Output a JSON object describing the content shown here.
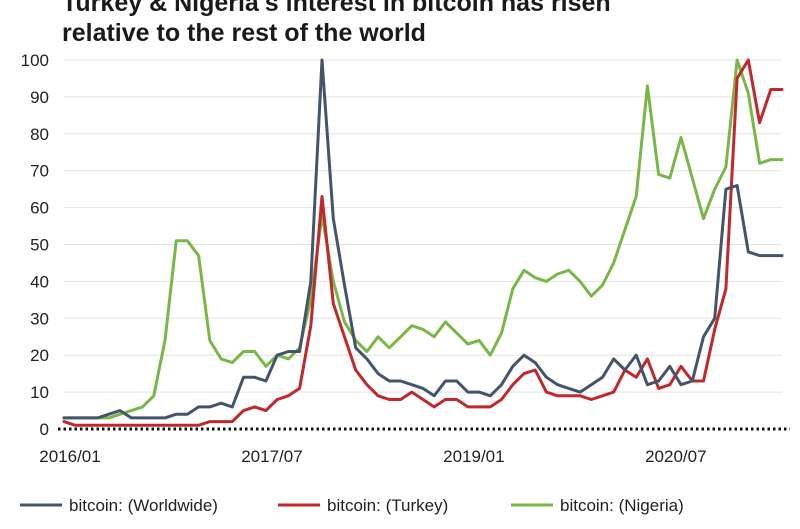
{
  "title_lines": [
    "Turkey & Nigeria's interest in bitcoin has risen",
    "relative to the rest of the world"
  ],
  "chart_data": {
    "type": "line",
    "title": "Turkey & Nigeria's interest in bitcoin has risen relative to the rest of the world",
    "xlabel": "",
    "ylabel": "",
    "ylim": [
      0,
      100
    ],
    "yticks": [
      0,
      10,
      20,
      30,
      40,
      50,
      60,
      70,
      80,
      90,
      100
    ],
    "xtick_labels": [
      "2016/01",
      "2017/07",
      "2019/01",
      "2020/07"
    ],
    "xtick_indices": [
      0,
      18,
      36,
      54
    ],
    "x": [
      "2016/01",
      "2016/02",
      "2016/03",
      "2016/04",
      "2016/05",
      "2016/06",
      "2016/07",
      "2016/08",
      "2016/09",
      "2016/10",
      "2016/11",
      "2016/12",
      "2017/01",
      "2017/02",
      "2017/03",
      "2017/04",
      "2017/05",
      "2017/06",
      "2017/07",
      "2017/08",
      "2017/09",
      "2017/10",
      "2017/11",
      "2017/12",
      "2018/01",
      "2018/02",
      "2018/03",
      "2018/04",
      "2018/05",
      "2018/06",
      "2018/07",
      "2018/08",
      "2018/09",
      "2018/10",
      "2018/11",
      "2018/12",
      "2019/01",
      "2019/02",
      "2019/03",
      "2019/04",
      "2019/05",
      "2019/06",
      "2019/07",
      "2019/08",
      "2019/09",
      "2019/10",
      "2019/11",
      "2019/12",
      "2020/01",
      "2020/02",
      "2020/03",
      "2020/04",
      "2020/05",
      "2020/06",
      "2020/07",
      "2020/08",
      "2020/09",
      "2020/10",
      "2020/11",
      "2020/12",
      "2021/01",
      "2021/02",
      "2021/03",
      "2021/04",
      "2021/05"
    ],
    "grid": true,
    "legend_position": "bottom",
    "series": [
      {
        "name": "bitcoin: (Worldwide)",
        "color": "#44546a",
        "values": [
          3,
          3,
          3,
          3,
          4,
          5,
          3,
          3,
          3,
          3,
          4,
          4,
          6,
          6,
          7,
          6,
          14,
          14,
          13,
          20,
          21,
          21,
          40,
          100,
          57,
          39,
          22,
          19,
          15,
          13,
          13,
          12,
          11,
          9,
          13,
          13,
          10,
          10,
          9,
          12,
          17,
          20,
          18,
          14,
          12,
          11,
          10,
          12,
          14,
          19,
          16,
          20,
          12,
          13,
          17,
          12,
          13,
          25,
          30,
          65,
          66,
          48,
          47,
          47,
          47
        ]
      },
      {
        "name": "bitcoin: (Turkey)",
        "color": "#c0282d",
        "values": [
          2,
          1,
          1,
          1,
          1,
          1,
          1,
          1,
          1,
          1,
          1,
          1,
          1,
          2,
          2,
          2,
          5,
          6,
          5,
          8,
          9,
          11,
          28,
          63,
          34,
          25,
          16,
          12,
          9,
          8,
          8,
          10,
          8,
          6,
          8,
          8,
          6,
          6,
          6,
          8,
          12,
          15,
          16,
          10,
          9,
          9,
          9,
          8,
          9,
          10,
          16,
          14,
          19,
          11,
          12,
          17,
          13,
          13,
          27,
          38,
          95,
          100,
          83,
          92,
          92
        ]
      },
      {
        "name": "bitcoin: (Nigeria)",
        "color": "#7ab648",
        "values": [
          3,
          3,
          3,
          3,
          3,
          4,
          5,
          6,
          9,
          24,
          51,
          51,
          47,
          24,
          19,
          18,
          21,
          21,
          17,
          20,
          19,
          22,
          35,
          58,
          40,
          29,
          24,
          21,
          25,
          22,
          25,
          28,
          27,
          25,
          29,
          26,
          23,
          24,
          20,
          26,
          38,
          43,
          41,
          40,
          42,
          43,
          40,
          36,
          39,
          45,
          54,
          63,
          93,
          69,
          68,
          79,
          68,
          57,
          65,
          71,
          100,
          91,
          72,
          73,
          73
        ]
      }
    ]
  }
}
